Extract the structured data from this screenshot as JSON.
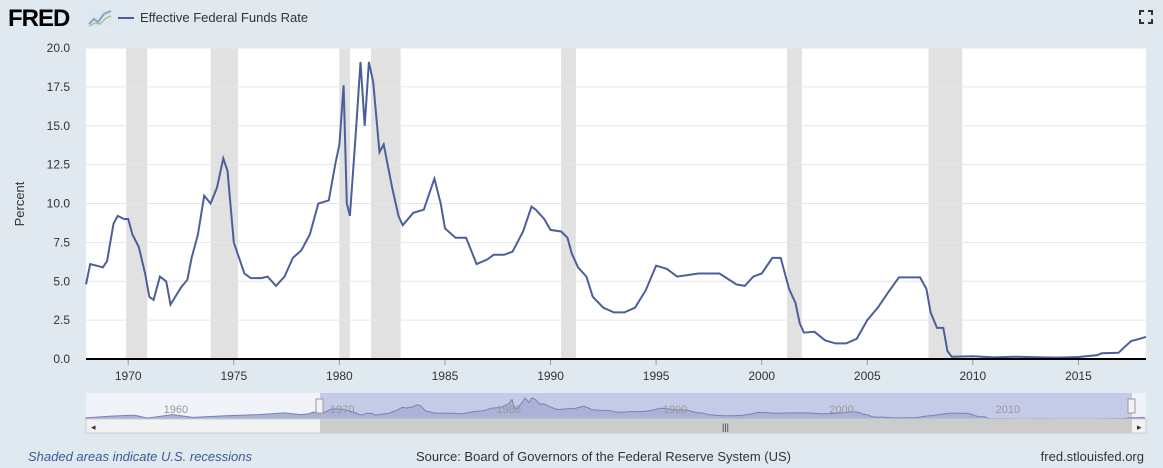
{
  "header": {
    "logo_text": "FRED",
    "series_name": "Effective Federal Funds Rate"
  },
  "footer": {
    "recessions_note": "Shaded areas indicate U.S. recessions",
    "source": "Source: Board of Governors of the Federal Reserve System (US)",
    "site": "fred.stlouisfed.org"
  },
  "colors": {
    "line": "#4c5f9b",
    "recession": "#e1e1e1",
    "background": "#e1e9f0",
    "navigator_fill": "#c5cbe6"
  },
  "chart_data": {
    "type": "line",
    "title": "Effective Federal Funds Rate",
    "ylabel": "Percent",
    "xlabel": "",
    "xlim": [
      1968.0,
      2018.2
    ],
    "ylim": [
      0,
      20
    ],
    "y_ticks": [
      "0.0",
      "2.5",
      "5.0",
      "7.5",
      "10.0",
      "12.5",
      "15.0",
      "17.5",
      "20.0"
    ],
    "x_ticks": [
      "1970",
      "1975",
      "1980",
      "1985",
      "1990",
      "1995",
      "2000",
      "2005",
      "2010",
      "2015"
    ],
    "grid": true,
    "recessions": [
      [
        1969.9,
        1970.9
      ],
      [
        1973.9,
        1975.2
      ],
      [
        1980.0,
        1980.5
      ],
      [
        1981.5,
        1982.9
      ],
      [
        1990.5,
        1991.2
      ],
      [
        2001.2,
        2001.9
      ],
      [
        2007.9,
        2009.5
      ]
    ],
    "series": [
      {
        "name": "Effective Federal Funds Rate",
        "x": [
          1968.0,
          1968.2,
          1968.5,
          1968.8,
          1969.0,
          1969.3,
          1969.5,
          1969.8,
          1970.0,
          1970.2,
          1970.5,
          1970.8,
          1971.0,
          1971.2,
          1971.5,
          1971.8,
          1972.0,
          1972.5,
          1972.8,
          1973.0,
          1973.3,
          1973.6,
          1973.9,
          1974.2,
          1974.5,
          1974.7,
          1975.0,
          1975.5,
          1975.8,
          1976.3,
          1976.6,
          1977.0,
          1977.4,
          1977.8,
          1978.2,
          1978.6,
          1979.0,
          1979.5,
          1979.8,
          1980.0,
          1980.2,
          1980.35,
          1980.5,
          1980.8,
          1981.0,
          1981.2,
          1981.4,
          1981.6,
          1981.9,
          1982.1,
          1982.5,
          1982.8,
          1983.0,
          1983.5,
          1984.0,
          1984.5,
          1984.8,
          1985.0,
          1985.5,
          1986.0,
          1986.5,
          1987.0,
          1987.3,
          1987.8,
          1988.2,
          1988.7,
          1989.1,
          1989.3,
          1989.7,
          1990.0,
          1990.5,
          1990.8,
          1991.0,
          1991.3,
          1991.7,
          1992.0,
          1992.5,
          1993.0,
          1993.5,
          1994.0,
          1994.5,
          1995.0,
          1995.5,
          1996.0,
          1997.0,
          1998.0,
          1998.8,
          1999.2,
          1999.6,
          2000.0,
          2000.5,
          2000.9,
          2001.1,
          2001.3,
          2001.6,
          2001.8,
          2002.0,
          2002.5,
          2003.0,
          2003.5,
          2004.0,
          2004.5,
          2005.0,
          2005.5,
          2006.0,
          2006.5,
          2007.0,
          2007.5,
          2007.8,
          2008.0,
          2008.3,
          2008.6,
          2008.8,
          2009.0,
          2010.0,
          2011.0,
          2012.0,
          2013.0,
          2014.0,
          2015.0,
          2015.9,
          2016.1,
          2016.9,
          2017.1,
          2017.3,
          2017.5,
          2017.9,
          2018.2
        ],
        "values": [
          4.8,
          6.1,
          6.0,
          5.9,
          6.3,
          8.7,
          9.2,
          9.0,
          9.0,
          8.0,
          7.2,
          5.5,
          4.0,
          3.8,
          5.3,
          5.0,
          3.5,
          4.6,
          5.1,
          6.5,
          8.0,
          10.5,
          10.0,
          11.0,
          12.9,
          12.1,
          7.5,
          5.5,
          5.2,
          5.2,
          5.3,
          4.7,
          5.3,
          6.5,
          7.0,
          8.0,
          10.0,
          10.2,
          12.5,
          13.8,
          17.6,
          10.0,
          9.2,
          15.0,
          19.1,
          15.0,
          19.1,
          17.8,
          13.3,
          13.8,
          11.0,
          9.2,
          8.6,
          9.4,
          9.6,
          11.6,
          10.0,
          8.4,
          7.8,
          7.8,
          6.1,
          6.4,
          6.7,
          6.7,
          6.9,
          8.2,
          9.8,
          9.6,
          9.0,
          8.3,
          8.2,
          7.8,
          6.8,
          5.9,
          5.3,
          4.0,
          3.3,
          3.0,
          3.0,
          3.3,
          4.4,
          6.0,
          5.8,
          5.3,
          5.5,
          5.5,
          4.8,
          4.7,
          5.3,
          5.5,
          6.5,
          6.5,
          5.5,
          4.5,
          3.6,
          2.3,
          1.7,
          1.75,
          1.2,
          1.0,
          1.0,
          1.3,
          2.5,
          3.3,
          4.3,
          5.25,
          5.25,
          5.25,
          4.5,
          3.0,
          2.0,
          2.0,
          0.5,
          0.15,
          0.18,
          0.1,
          0.15,
          0.11,
          0.09,
          0.13,
          0.25,
          0.37,
          0.4,
          0.66,
          0.91,
          1.16,
          1.3,
          1.42
        ]
      }
    ]
  }
}
